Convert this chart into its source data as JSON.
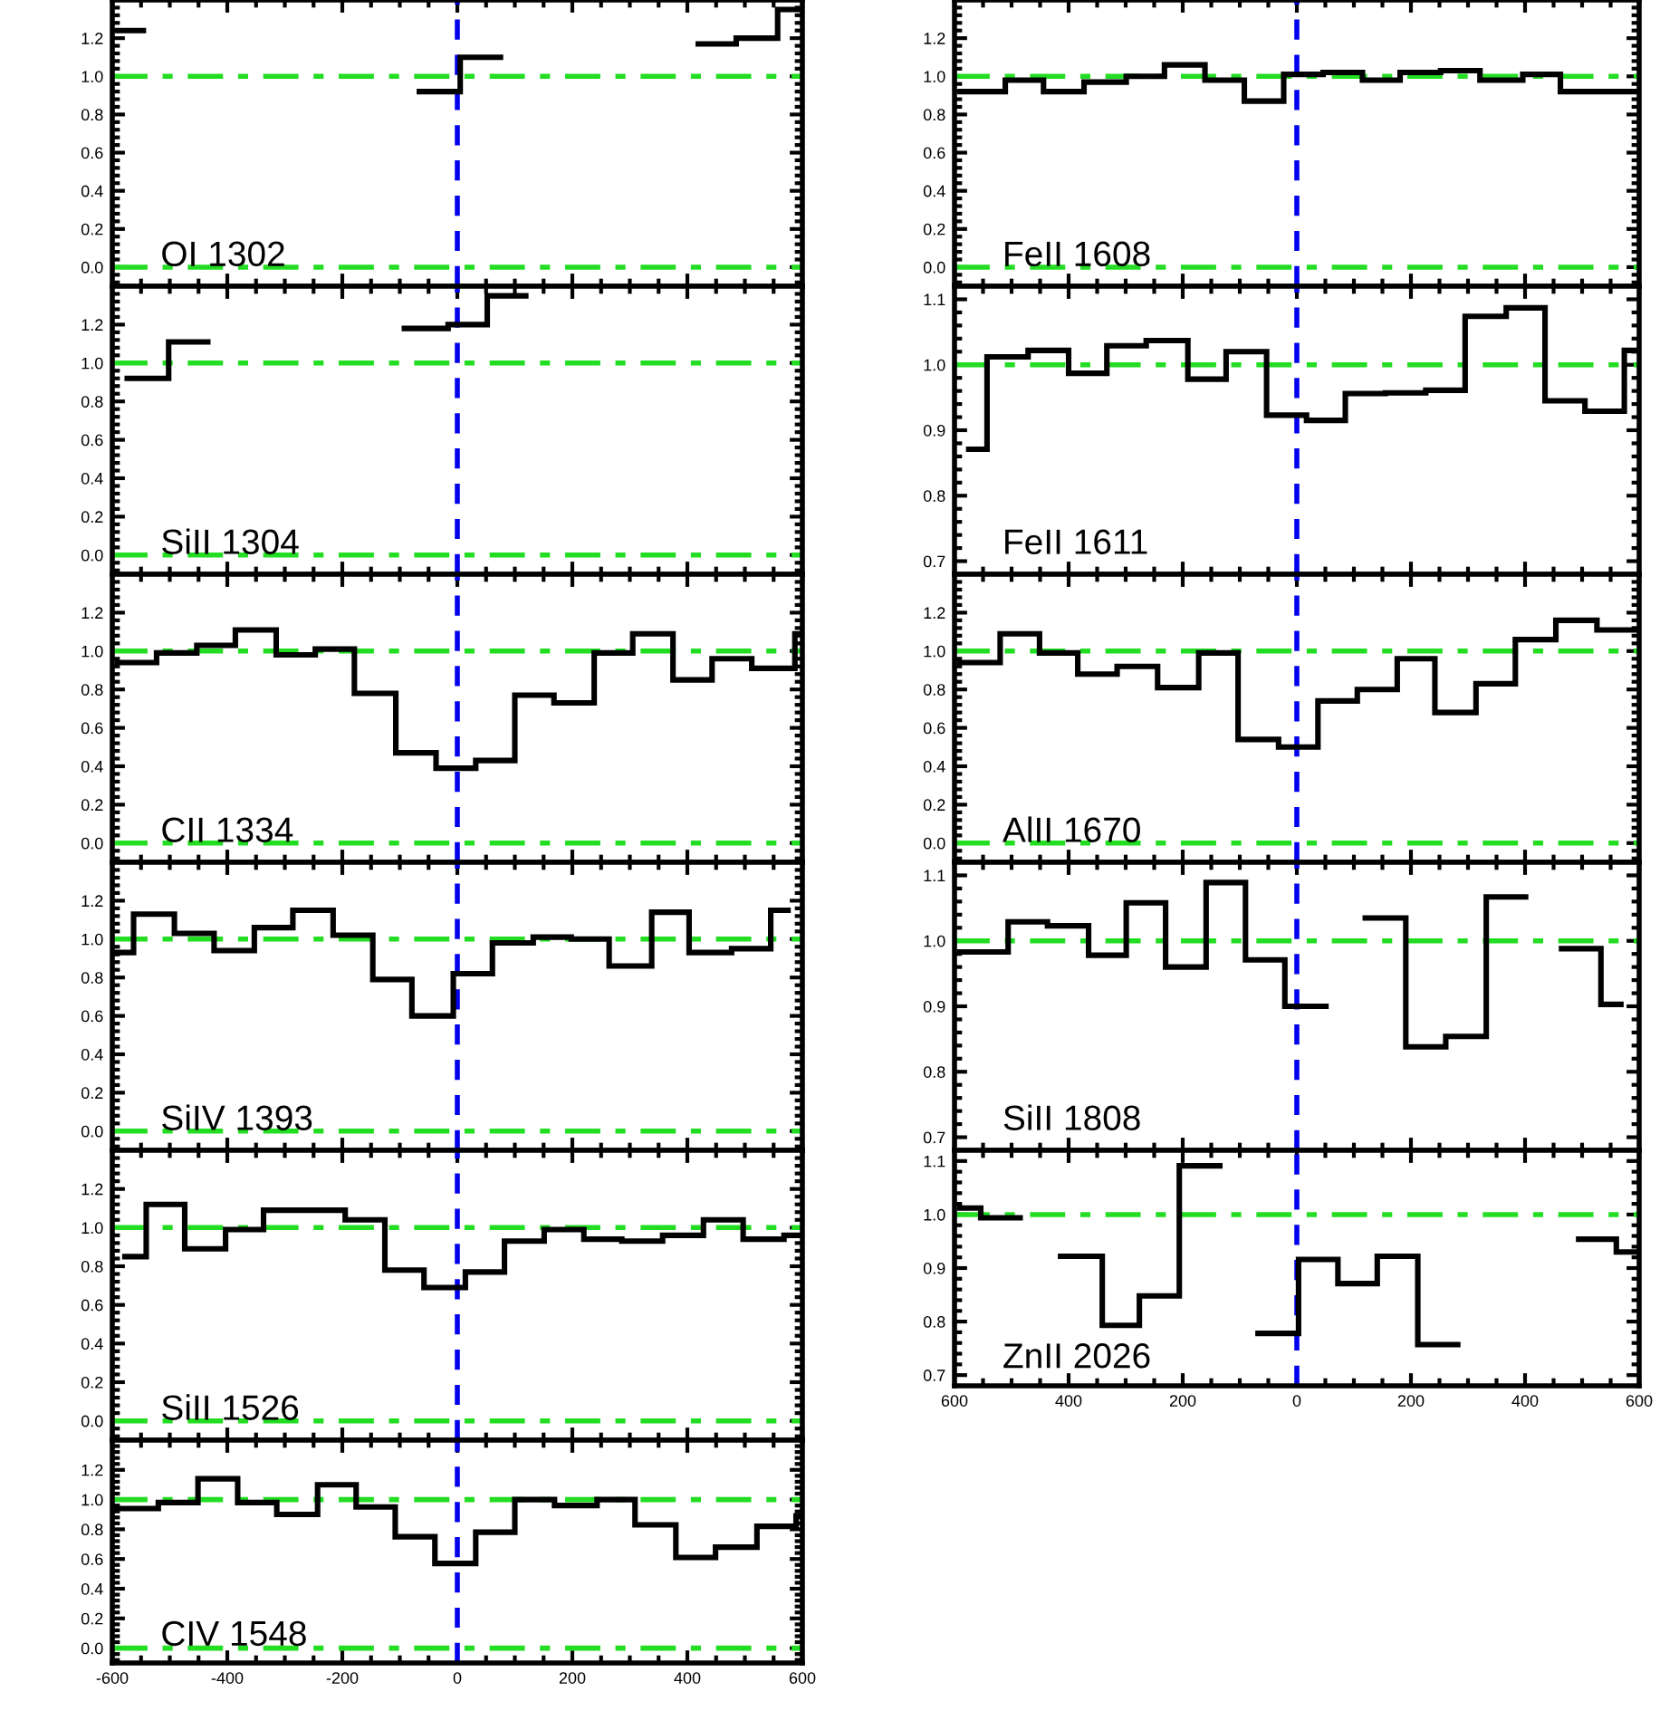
{
  "chart_data": [
    {
      "type": "step",
      "title": "OI 1302",
      "xlim": [
        -600,
        600
      ],
      "ylim": [
        -0.1,
        1.4
      ],
      "xticks": [
        -600,
        -400,
        -200,
        0,
        200,
        400,
        600
      ],
      "yticks": [
        {
          "value": 0,
          "label": "0.0"
        },
        {
          "value": 0.2,
          "label": "0.2"
        },
        {
          "value": 0.4,
          "label": "0.4"
        },
        {
          "value": 0.6,
          "label": "0.6"
        },
        {
          "value": 0.8,
          "label": "0.8"
        },
        {
          "value": 1.0,
          "label": "1.0"
        },
        {
          "value": 1.2,
          "label": "1.2"
        }
      ],
      "tick_labels": "y",
      "grid": false,
      "ref_lines": [
        {
          "axis": "y",
          "value": 1.0,
          "color": "#22dd22",
          "line_style": "dashdot"
        },
        {
          "axis": "y",
          "value": 0.0,
          "color": "#22dd22",
          "line_style": "dashdot"
        },
        {
          "axis": "x",
          "value": 0,
          "color": "#0000ee",
          "line_style": "dashed"
        }
      ],
      "series": [
        {
          "color": "#000000",
          "x": [
            -591,
            -546,
            -66,
            5,
            75,
            419,
            485,
            557,
            600
          ],
          "values": [
            1.24,
            null,
            0.92,
            1.1,
            null,
            1.17,
            1.2,
            1.35,
            1.35
          ]
        }
      ]
    },
    {
      "type": "step",
      "title": "SiII 1304",
      "xlim": [
        -600,
        600
      ],
      "ylim": [
        -0.1,
        1.4
      ],
      "xticks": [
        -600,
        -400,
        -200,
        0,
        200,
        400,
        600
      ],
      "yticks": [
        {
          "value": 0,
          "label": "0.0"
        },
        {
          "value": 0.2,
          "label": "0.2"
        },
        {
          "value": 0.4,
          "label": "0.4"
        },
        {
          "value": 0.6,
          "label": "0.6"
        },
        {
          "value": 0.8,
          "label": "0.8"
        },
        {
          "value": 1.0,
          "label": "1.0"
        },
        {
          "value": 1.2,
          "label": "1.2"
        }
      ],
      "tick_labels": "y",
      "grid": false,
      "ref_lines": [
        {
          "axis": "y",
          "value": 1.0,
          "color": "#22dd22",
          "line_style": "dashdot"
        },
        {
          "axis": "y",
          "value": 0.0,
          "color": "#22dd22",
          "line_style": "dashdot"
        },
        {
          "axis": "x",
          "value": 0,
          "color": "#0000ee",
          "line_style": "dashed"
        }
      ],
      "series": [
        {
          "color": "#000000",
          "x": [
            -574,
            -502,
            -434,
            -92,
            -16,
            52,
            119
          ],
          "values": [
            0.92,
            1.11,
            null,
            1.18,
            1.2,
            1.35,
            1.35
          ]
        }
      ]
    },
    {
      "type": "step",
      "title": "CII 1334",
      "xlim": [
        -600,
        600
      ],
      "ylim": [
        -0.1,
        1.4
      ],
      "xticks": [
        -600,
        -400,
        -200,
        0,
        200,
        400,
        600
      ],
      "yticks": [
        {
          "value": 0,
          "label": "0.0"
        },
        {
          "value": 0.2,
          "label": "0.2"
        },
        {
          "value": 0.4,
          "label": "0.4"
        },
        {
          "value": 0.6,
          "label": "0.6"
        },
        {
          "value": 0.8,
          "label": "0.8"
        },
        {
          "value": 1.0,
          "label": "1.0"
        },
        {
          "value": 1.2,
          "label": "1.2"
        }
      ],
      "tick_labels": "y",
      "grid": false,
      "ref_lines": [
        {
          "axis": "y",
          "value": 1.0,
          "color": "#22dd22",
          "line_style": "dashdot"
        },
        {
          "axis": "y",
          "value": 0.0,
          "color": "#22dd22",
          "line_style": "dashdot"
        },
        {
          "axis": "x",
          "value": 0,
          "color": "#0000ee",
          "line_style": "dashed"
        }
      ],
      "series": [
        {
          "color": "#000000",
          "x": [
            -591,
            -523,
            -453,
            -386,
            -315,
            -247,
            -179,
            -107,
            -37,
            32,
            100,
            168,
            238,
            305,
            375,
            443,
            512,
            587,
            600
          ],
          "values": [
            0.94,
            0.99,
            1.03,
            1.11,
            0.98,
            1.01,
            0.78,
            0.47,
            0.39,
            0.43,
            0.77,
            0.73,
            0.99,
            1.09,
            0.85,
            0.96,
            0.91,
            1.09,
            1.09
          ]
        }
      ]
    },
    {
      "type": "step",
      "title": "SiIV 1393",
      "xlim": [
        -600,
        600
      ],
      "ylim": [
        -0.1,
        1.4
      ],
      "xticks": [
        -600,
        -400,
        -200,
        0,
        200,
        400,
        600
      ],
      "yticks": [
        {
          "value": 0,
          "label": "0.0"
        },
        {
          "value": 0.2,
          "label": "0.2"
        },
        {
          "value": 0.4,
          "label": "0.4"
        },
        {
          "value": 0.6,
          "label": "0.6"
        },
        {
          "value": 0.8,
          "label": "0.8"
        },
        {
          "value": 1.0,
          "label": "1.0"
        },
        {
          "value": 1.2,
          "label": "1.2"
        }
      ],
      "tick_labels": "y",
      "grid": false,
      "ref_lines": [
        {
          "axis": "y",
          "value": 1.0,
          "color": "#22dd22",
          "line_style": "dashdot"
        },
        {
          "axis": "y",
          "value": 0.0,
          "color": "#22dd22",
          "line_style": "dashdot"
        },
        {
          "axis": "x",
          "value": 0,
          "color": "#0000ee",
          "line_style": "dashed"
        }
      ],
      "series": [
        {
          "color": "#000000",
          "x": [
            -592,
            -563,
            -492,
            -423,
            -353,
            -286,
            -216,
            -147,
            -79,
            -7,
            61,
            132,
            198,
            264,
            338,
            403,
            477,
            545,
            575
          ],
          "values": [
            0.93,
            1.13,
            1.03,
            0.94,
            1.06,
            1.15,
            1.02,
            0.79,
            0.6,
            0.82,
            0.98,
            1.01,
            1.0,
            0.86,
            1.14,
            0.93,
            0.95,
            1.15,
            1.15
          ]
        }
      ]
    },
    {
      "type": "step",
      "title": "SiII 1526",
      "xlim": [
        -600,
        600
      ],
      "ylim": [
        -0.1,
        1.4
      ],
      "xticks": [
        -600,
        -400,
        -200,
        0,
        200,
        400,
        600
      ],
      "yticks": [
        {
          "value": 0,
          "label": "0.0"
        },
        {
          "value": 0.2,
          "label": "0.2"
        },
        {
          "value": 0.4,
          "label": "0.4"
        },
        {
          "value": 0.6,
          "label": "0.6"
        },
        {
          "value": 0.8,
          "label": "0.8"
        },
        {
          "value": 1.0,
          "label": "1.0"
        },
        {
          "value": 1.2,
          "label": "1.2"
        }
      ],
      "tick_labels": "y",
      "grid": false,
      "ref_lines": [
        {
          "axis": "y",
          "value": 1.0,
          "color": "#22dd22",
          "line_style": "dashdot"
        },
        {
          "axis": "y",
          "value": 0.0,
          "color": "#22dd22",
          "line_style": "dashdot"
        },
        {
          "axis": "x",
          "value": 0,
          "color": "#0000ee",
          "line_style": "dashed"
        }
      ],
      "series": [
        {
          "color": "#000000",
          "x": [
            -578,
            -541,
            -474,
            -403,
            -337,
            -195,
            -126,
            -58,
            14,
            82,
            151,
            220,
            286,
            357,
            428,
            497,
            568,
            600
          ],
          "values": [
            0.85,
            1.12,
            0.89,
            0.99,
            1.09,
            1.04,
            0.78,
            0.69,
            0.77,
            0.93,
            0.99,
            0.94,
            0.93,
            0.96,
            1.04,
            0.94,
            0.96,
            0.96
          ]
        }
      ]
    },
    {
      "type": "step",
      "title": "CIV 1548",
      "xlim": [
        -600,
        600
      ],
      "ylim": [
        -0.1,
        1.4
      ],
      "xticks": [
        -600,
        -400,
        -200,
        0,
        200,
        400,
        600
      ],
      "yticks": [
        {
          "value": 0,
          "label": "0.0"
        },
        {
          "value": 0.2,
          "label": "0.2"
        },
        {
          "value": 0.4,
          "label": "0.4"
        },
        {
          "value": 0.6,
          "label": "0.6"
        },
        {
          "value": 0.8,
          "label": "0.8"
        },
        {
          "value": 1.0,
          "label": "1.0"
        },
        {
          "value": 1.2,
          "label": "1.2"
        }
      ],
      "grid": false,
      "ref_lines": [
        {
          "axis": "y",
          "value": 1.0,
          "color": "#22dd22",
          "line_style": "dashdot"
        },
        {
          "axis": "y",
          "value": 0.0,
          "color": "#22dd22",
          "line_style": "dashdot"
        },
        {
          "axis": "x",
          "value": 0,
          "color": "#0000ee",
          "line_style": "dashed"
        }
      ],
      "series": [
        {
          "color": "#000000",
          "x": [
            -593,
            -520,
            -451,
            -382,
            -314,
            -243,
            -176,
            -108,
            -39,
            32,
            100,
            169,
            243,
            309,
            380,
            449,
            521,
            589,
            600
          ],
          "values": [
            0.94,
            0.98,
            1.14,
            0.98,
            0.9,
            1.1,
            0.95,
            0.75,
            0.57,
            0.78,
            1.0,
            0.96,
            1.0,
            0.83,
            0.61,
            0.68,
            0.82,
            0.89,
            0.89
          ]
        }
      ]
    },
    {
      "type": "step",
      "title": "FeII 1608",
      "xlim": [
        -600,
        600
      ],
      "ylim": [
        -0.1,
        1.4
      ],
      "xticks": [
        -600,
        -400,
        -200,
        0,
        200,
        400,
        600
      ],
      "yticks": [
        {
          "value": 0,
          "label": "0.0"
        },
        {
          "value": 0.2,
          "label": "0.2"
        },
        {
          "value": 0.4,
          "label": "0.4"
        },
        {
          "value": 0.6,
          "label": "0.6"
        },
        {
          "value": 0.8,
          "label": "0.8"
        },
        {
          "value": 1.0,
          "label": "1.0"
        },
        {
          "value": 1.2,
          "label": "1.2"
        }
      ],
      "tick_labels": "y",
      "grid": false,
      "ref_lines": [
        {
          "axis": "y",
          "value": 1.0,
          "color": "#22dd22",
          "line_style": "dashdot"
        },
        {
          "axis": "y",
          "value": 0.0,
          "color": "#22dd22",
          "line_style": "dashdot"
        },
        {
          "axis": "x",
          "value": 0,
          "color": "#0000ee",
          "line_style": "dashed"
        }
      ],
      "series": [
        {
          "color": "#000000",
          "x": [
            -590,
            -511,
            -444,
            -373,
            -299,
            -232,
            -161,
            -92,
            -23,
            46,
            115,
            181,
            252,
            321,
            396,
            462,
            600
          ],
          "values": [
            0.92,
            0.98,
            0.92,
            0.97,
            1.0,
            1.06,
            0.98,
            0.87,
            1.01,
            1.02,
            0.98,
            1.02,
            1.03,
            0.98,
            1.01,
            0.92,
            0.92
          ]
        }
      ]
    },
    {
      "type": "step",
      "title": "FeII 1611",
      "xlim": [
        -600,
        600
      ],
      "ylim": [
        0.68,
        1.12
      ],
      "xticks": [
        -600,
        -400,
        -200,
        0,
        200,
        400,
        600
      ],
      "yticks": [
        {
          "value": 0.7,
          "label": "0.7"
        },
        {
          "value": 0.8,
          "label": "0.8"
        },
        {
          "value": 0.9,
          "label": "0.9"
        },
        {
          "value": 1.0,
          "label": "1.0"
        },
        {
          "value": 1.1,
          "label": "1.1"
        }
      ],
      "tick_labels": "y",
      "grid": false,
      "ref_lines": [
        {
          "axis": "y",
          "value": 1.0,
          "color": "#22dd22",
          "line_style": "dashdot"
        },
        {
          "axis": "x",
          "value": 0,
          "color": "#0000ee",
          "line_style": "dashed"
        }
      ],
      "series": [
        {
          "color": "#000000",
          "x": [
            -575,
            -543,
            -471,
            -400,
            -333,
            -264,
            -191,
            -124,
            -53,
            17,
            85,
            155,
            226,
            295,
            367,
            435,
            505,
            574,
            600
          ],
          "values": [
            0.871,
            1.012,
            1.022,
            0.987,
            1.029,
            1.037,
            0.978,
            1.02,
            0.923,
            0.915,
            0.956,
            0.957,
            0.961,
            1.074,
            1.087,
            0.945,
            0.929,
            1.022,
            1.022
          ]
        }
      ]
    },
    {
      "type": "step",
      "title": "AlII 1670",
      "xlim": [
        -600,
        600
      ],
      "ylim": [
        -0.1,
        1.4
      ],
      "xticks": [
        -600,
        -400,
        -200,
        0,
        200,
        400,
        600
      ],
      "yticks": [
        {
          "value": 0,
          "label": "0.0"
        },
        {
          "value": 0.2,
          "label": "0.2"
        },
        {
          "value": 0.4,
          "label": "0.4"
        },
        {
          "value": 0.6,
          "label": "0.6"
        },
        {
          "value": 0.8,
          "label": "0.8"
        },
        {
          "value": 1.0,
          "label": "1.0"
        },
        {
          "value": 1.2,
          "label": "1.2"
        }
      ],
      "tick_labels": "y",
      "grid": false,
      "ref_lines": [
        {
          "axis": "y",
          "value": 1.0,
          "color": "#22dd22",
          "line_style": "dashdot"
        },
        {
          "axis": "y",
          "value": 0.0,
          "color": "#22dd22",
          "line_style": "dashdot"
        },
        {
          "axis": "x",
          "value": 0,
          "color": "#0000ee",
          "line_style": "dashed"
        }
      ],
      "series": [
        {
          "color": "#000000",
          "x": [
            -591,
            -520,
            -451,
            -384,
            -315,
            -244,
            -172,
            -103,
            -32,
            37,
            106,
            176,
            242,
            314,
            383,
            454,
            526,
            600
          ],
          "values": [
            0.94,
            1.09,
            0.99,
            0.88,
            0.92,
            0.81,
            0.99,
            0.54,
            0.5,
            0.74,
            0.8,
            0.96,
            0.68,
            0.83,
            1.06,
            1.16,
            1.11,
            1.11
          ]
        }
      ]
    },
    {
      "type": "step",
      "title": "SiII 1808",
      "xlim": [
        -600,
        600
      ],
      "ylim": [
        0.68,
        1.12
      ],
      "xticks": [
        -600,
        -400,
        -200,
        0,
        200,
        400,
        600
      ],
      "yticks": [
        {
          "value": 0.7,
          "label": "0.7"
        },
        {
          "value": 0.8,
          "label": "0.8"
        },
        {
          "value": 0.9,
          "label": "0.9"
        },
        {
          "value": 1.0,
          "label": "1.0"
        },
        {
          "value": 1.1,
          "label": "1.1"
        }
      ],
      "tick_labels": "y",
      "grid": false,
      "ref_lines": [
        {
          "axis": "y",
          "value": 1.0,
          "color": "#22dd22",
          "line_style": "dashdot"
        },
        {
          "axis": "x",
          "value": 0,
          "color": "#0000ee",
          "line_style": "dashed"
        }
      ],
      "series": [
        {
          "color": "#000000",
          "x": [
            -591,
            -506,
            -437,
            -365,
            -299,
            -230,
            -159,
            -90,
            -21,
            51,
            120,
            191,
            261,
            332,
            401,
            464,
            533,
            568
          ],
          "values": [
            0.983,
            1.029,
            1.023,
            0.978,
            1.058,
            0.96,
            1.089,
            0.971,
            0.9,
            null,
            1.035,
            0.838,
            0.854,
            1.067,
            null,
            0.988,
            0.903,
            0.903
          ]
        }
      ]
    },
    {
      "type": "step",
      "title": "ZnII 2026",
      "xlim": [
        -600,
        600
      ],
      "ylim": [
        0.68,
        1.12
      ],
      "xticks": [
        {
          "value": -600,
          "label": "600"
        },
        {
          "value": -400,
          "label": "400"
        },
        {
          "value": -200,
          "label": "200"
        },
        0,
        200,
        400,
        600
      ],
      "yticks": [
        {
          "value": 0.7,
          "label": "0.7"
        },
        {
          "value": 0.8,
          "label": "0.8"
        },
        {
          "value": 0.9,
          "label": "0.9"
        },
        {
          "value": 1.0,
          "label": "1.0"
        },
        {
          "value": 1.1,
          "label": "1.1"
        }
      ],
      "grid": false,
      "ref_lines": [
        {
          "axis": "y",
          "value": 1.0,
          "color": "#22dd22",
          "line_style": "dashdot"
        },
        {
          "axis": "x",
          "value": 0,
          "color": "#0000ee",
          "line_style": "dashed"
        }
      ],
      "series": [
        {
          "color": "#000000",
          "x": [
            -591,
            -554,
            -485,
            -414,
            -341,
            -276,
            -206,
            -135,
            -68,
            3,
            72,
            141,
            212,
            282,
            351,
            494,
            560,
            600
          ],
          "values": [
            1.012,
            0.994,
            null,
            0.922,
            0.793,
            0.848,
            1.091,
            null,
            0.778,
            0.916,
            0.871,
            0.922,
            0.757,
            null,
            null,
            0.954,
            0.93,
            0.93
          ]
        }
      ]
    }
  ]
}
